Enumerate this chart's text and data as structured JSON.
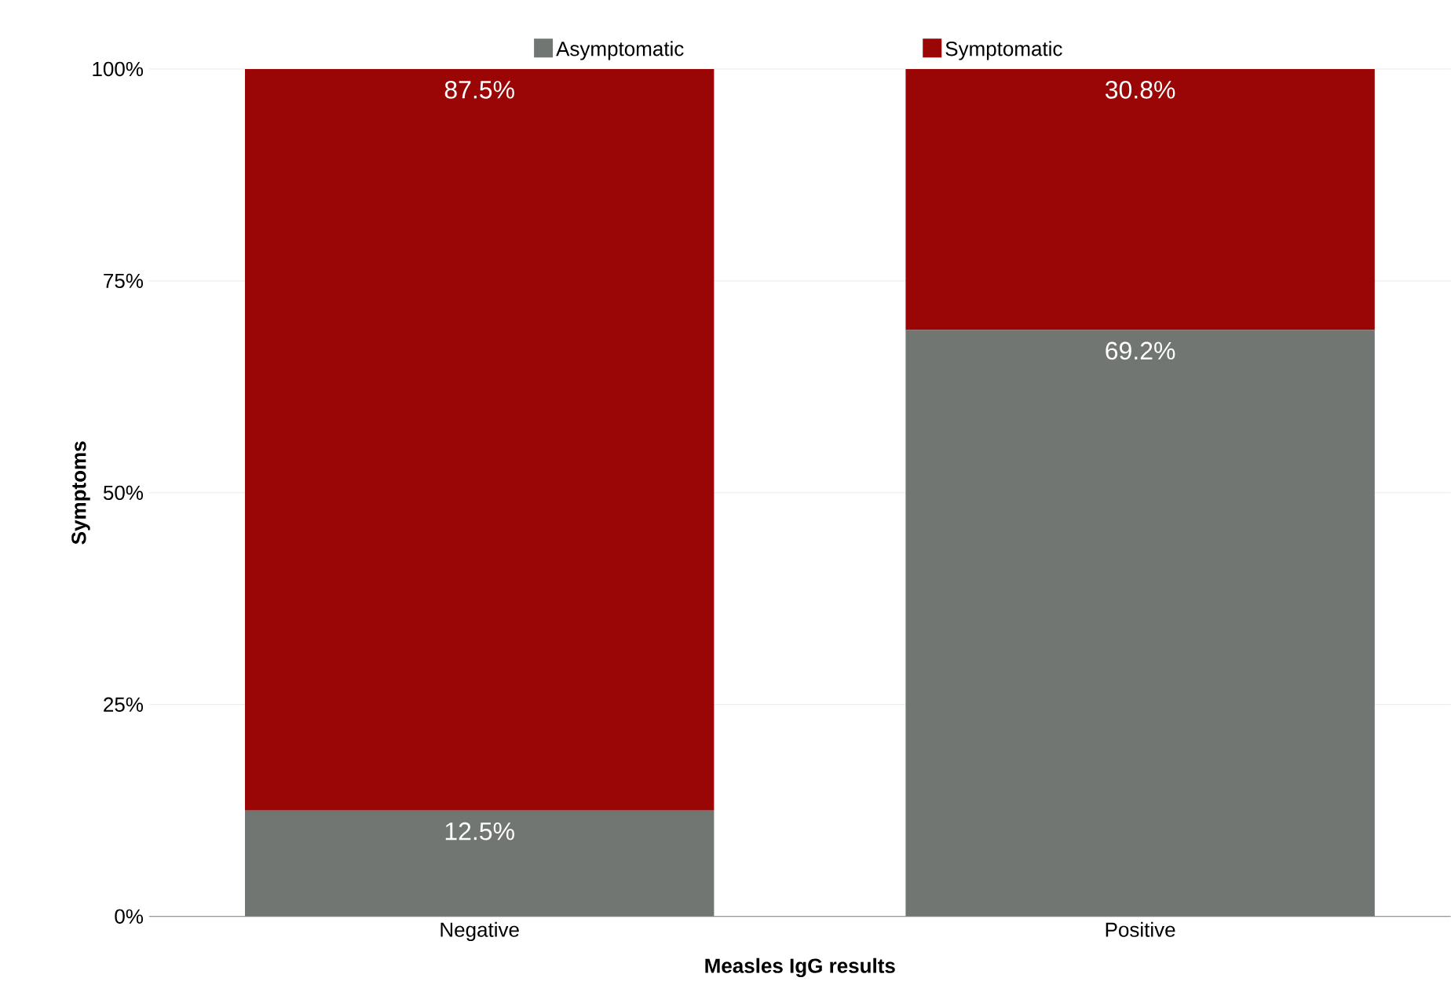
{
  "chart_data": {
    "type": "bar",
    "stacked": true,
    "xlabel": "Measles IgG results",
    "ylabel": "Symptoms",
    "categories": [
      "Negative",
      "Positive"
    ],
    "series": [
      {
        "name": "Asymptomatic",
        "color": "#717673",
        "values": [
          12.5,
          69.2
        ],
        "value_labels": [
          "12.5%",
          "69.2%"
        ]
      },
      {
        "name": "Symptomatic",
        "color": "#990605",
        "values": [
          87.5,
          30.8
        ],
        "value_labels": [
          "87.5%",
          "30.8%"
        ]
      }
    ],
    "ylim": [
      0,
      100
    ],
    "yticks": [
      {
        "value": 0,
        "label": "0%"
      },
      {
        "value": 25,
        "label": "25%"
      },
      {
        "value": 50,
        "label": "50%"
      },
      {
        "value": 75,
        "label": "75%"
      },
      {
        "value": 100,
        "label": "100%"
      }
    ],
    "grid": "y",
    "legend": "top"
  }
}
